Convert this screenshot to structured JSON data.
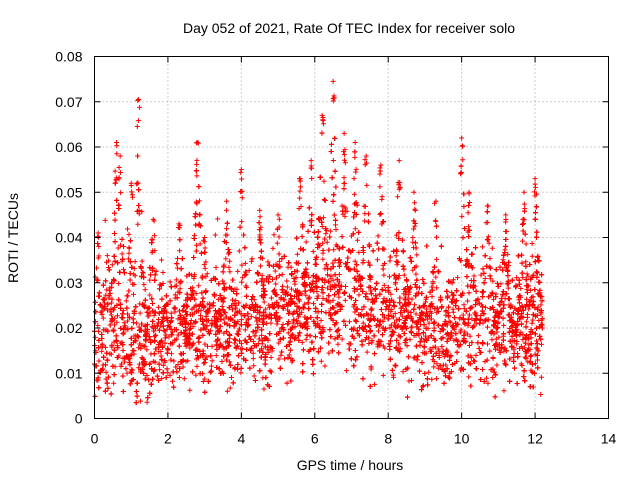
{
  "chart_data": {
    "type": "scatter",
    "title": "Day 052 of 2021, Rate Of TEC Index for receiver solo",
    "xlabel": "GPS time / hours",
    "ylabel": "ROTI / TECUs",
    "xlim": [
      0,
      14
    ],
    "ylim": [
      0,
      0.08
    ],
    "xticks": [
      0,
      2,
      4,
      6,
      8,
      10,
      12,
      14
    ],
    "yticks": [
      0,
      0.01,
      0.02,
      0.03,
      0.04,
      0.05,
      0.06,
      0.07,
      0.08
    ],
    "xtick_labels": [
      "0",
      "2",
      "4",
      "6",
      "8",
      "10",
      "12",
      "14"
    ],
    "ytick_labels": [
      "0",
      "0.01",
      "0.02",
      "0.03",
      "0.04",
      "0.05",
      "0.06",
      "0.07",
      "0.08"
    ],
    "grid": true,
    "marker": "+",
    "color": "#ff0000",
    "series": [
      {
        "name": "ROTI",
        "x_range": [
          0,
          12.2
        ],
        "sample_count": 6500,
        "baseline_profile": [
          [
            0.0,
            0.016
          ],
          [
            0.5,
            0.017
          ],
          [
            1.0,
            0.016
          ],
          [
            1.5,
            0.017
          ],
          [
            2.0,
            0.018
          ],
          [
            2.5,
            0.018
          ],
          [
            3.0,
            0.019
          ],
          [
            3.5,
            0.019
          ],
          [
            4.0,
            0.02
          ],
          [
            4.5,
            0.02
          ],
          [
            5.0,
            0.021
          ],
          [
            5.5,
            0.023
          ],
          [
            6.0,
            0.025
          ],
          [
            6.5,
            0.026
          ],
          [
            7.0,
            0.024
          ],
          [
            7.5,
            0.022
          ],
          [
            8.0,
            0.022
          ],
          [
            8.5,
            0.021
          ],
          [
            9.0,
            0.02
          ],
          [
            9.5,
            0.019
          ],
          [
            10.0,
            0.02
          ],
          [
            10.5,
            0.021
          ],
          [
            11.0,
            0.02
          ],
          [
            11.5,
            0.019
          ],
          [
            12.0,
            0.02
          ],
          [
            12.2,
            0.02
          ]
        ],
        "peaks": [
          {
            "x": 0.1,
            "y": 0.041
          },
          {
            "x": 0.35,
            "y": 0.036
          },
          {
            "x": 0.6,
            "y": 0.061
          },
          {
            "x": 0.7,
            "y": 0.058
          },
          {
            "x": 1.0,
            "y": 0.052
          },
          {
            "x": 1.2,
            "y": 0.0705
          },
          {
            "x": 1.6,
            "y": 0.044
          },
          {
            "x": 2.3,
            "y": 0.043
          },
          {
            "x": 2.8,
            "y": 0.061
          },
          {
            "x": 3.0,
            "y": 0.04
          },
          {
            "x": 3.6,
            "y": 0.048
          },
          {
            "x": 4.0,
            "y": 0.055
          },
          {
            "x": 4.5,
            "y": 0.046
          },
          {
            "x": 5.0,
            "y": 0.045
          },
          {
            "x": 5.6,
            "y": 0.053
          },
          {
            "x": 5.9,
            "y": 0.057
          },
          {
            "x": 6.2,
            "y": 0.067
          },
          {
            "x": 6.5,
            "y": 0.0745
          },
          {
            "x": 6.8,
            "y": 0.063
          },
          {
            "x": 7.1,
            "y": 0.061
          },
          {
            "x": 7.4,
            "y": 0.058
          },
          {
            "x": 7.8,
            "y": 0.056
          },
          {
            "x": 8.3,
            "y": 0.057
          },
          {
            "x": 8.7,
            "y": 0.05
          },
          {
            "x": 9.3,
            "y": 0.048
          },
          {
            "x": 10.0,
            "y": 0.062
          },
          {
            "x": 10.2,
            "y": 0.05
          },
          {
            "x": 10.7,
            "y": 0.047
          },
          {
            "x": 11.2,
            "y": 0.045
          },
          {
            "x": 11.7,
            "y": 0.05
          },
          {
            "x": 12.0,
            "y": 0.053
          }
        ],
        "min_value": 0.0035,
        "max_value": 0.0745
      }
    ]
  }
}
